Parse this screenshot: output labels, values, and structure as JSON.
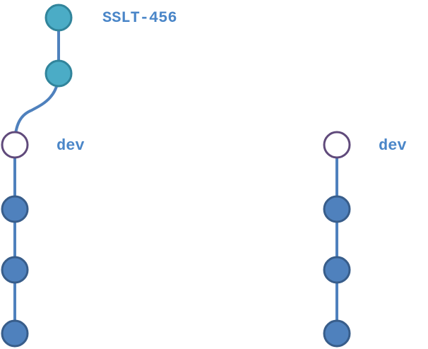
{
  "colors": {
    "feature_commit_fill": "#4bacc6",
    "feature_commit_stroke": "#31849b",
    "main_commit_fill": "#4f81bd",
    "main_commit_stroke": "#385d8a",
    "head_commit_fill": "#ffffff",
    "head_commit_stroke": "#604a7b",
    "edge": "#4f81bd",
    "label": "#4a86c8"
  },
  "left_graph": {
    "feature_branch_label": "SSLT-456",
    "head_label": "dev",
    "feature_commits": 2,
    "dev_history_commits": 3
  },
  "right_graph": {
    "head_label": "dev",
    "dev_history_commits": 3
  }
}
